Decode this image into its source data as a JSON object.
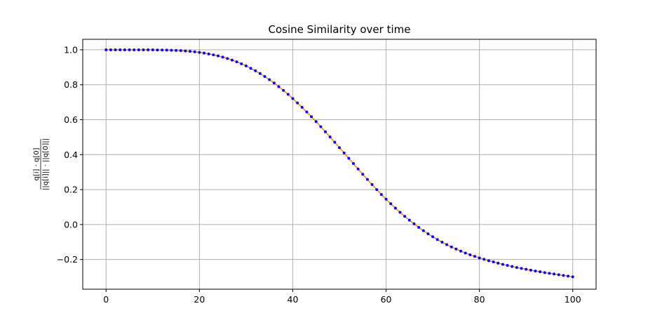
{
  "chart_data": {
    "type": "line",
    "title": "Cosine Similarity over time",
    "xlabel": "",
    "ylabel_numerator": "q[i] · q[0]",
    "ylabel_denominator": "||q[i]|| · ||q[0]||",
    "xlim": [
      -5,
      105
    ],
    "ylim": [
      -0.37,
      1.06
    ],
    "x_ticks": [
      0,
      20,
      40,
      60,
      80,
      100
    ],
    "y_ticks": [
      1.0,
      0.8,
      0.6,
      0.4,
      0.2,
      0.0,
      -0.2
    ],
    "x_tick_labels": [
      "0",
      "20",
      "40",
      "60",
      "80",
      "100"
    ],
    "y_tick_labels": [
      "1.0",
      "0.8",
      "0.6",
      "0.4",
      "0.2",
      "0.0",
      "−0.2"
    ],
    "grid": true,
    "colors": {
      "line": "#ff7f0e",
      "markers": "#0000ff"
    },
    "series": [
      {
        "x": [
          0,
          1,
          2,
          3,
          4,
          5,
          6,
          7,
          8,
          9,
          10,
          11,
          12,
          13,
          14,
          15,
          16,
          17,
          18,
          19,
          20,
          21,
          22,
          23,
          24,
          25,
          26,
          27,
          28,
          29,
          30,
          31,
          32,
          33,
          34,
          35,
          36,
          37,
          38,
          39,
          40,
          41,
          42,
          43,
          44,
          45,
          46,
          47,
          48,
          49,
          50,
          51,
          52,
          53,
          54,
          55,
          56,
          57,
          58,
          59,
          60,
          61,
          62,
          63,
          64,
          65,
          66,
          67,
          68,
          69,
          70,
          71,
          72,
          73,
          74,
          75,
          76,
          77,
          78,
          79,
          80,
          81,
          82,
          83,
          84,
          85,
          86,
          87,
          88,
          89,
          90,
          91,
          92,
          93,
          94,
          95,
          96,
          97,
          98,
          99,
          100
        ],
        "y": [
          1.0,
          1.0,
          1.0,
          1.0,
          1.0,
          1.0,
          1.0,
          1.0,
          1.0,
          1.0,
          1.0,
          0.999,
          0.999,
          0.998,
          0.997,
          0.996,
          0.995,
          0.993,
          0.991,
          0.988,
          0.985,
          0.981,
          0.976,
          0.971,
          0.965,
          0.958,
          0.95,
          0.941,
          0.931,
          0.92,
          0.908,
          0.894,
          0.88,
          0.864,
          0.847,
          0.829,
          0.81,
          0.789,
          0.768,
          0.745,
          0.721,
          0.696,
          0.671,
          0.644,
          0.617,
          0.589,
          0.56,
          0.531,
          0.501,
          0.471,
          0.44,
          0.41,
          0.379,
          0.349,
          0.318,
          0.288,
          0.258,
          0.229,
          0.2,
          0.172,
          0.145,
          0.119,
          0.094,
          0.07,
          0.047,
          0.025,
          0.004,
          -0.016,
          -0.035,
          -0.053,
          -0.07,
          -0.086,
          -0.101,
          -0.115,
          -0.128,
          -0.14,
          -0.152,
          -0.163,
          -0.173,
          -0.182,
          -0.191,
          -0.199,
          -0.207,
          -0.214,
          -0.221,
          -0.228,
          -0.234,
          -0.24,
          -0.246,
          -0.251,
          -0.256,
          -0.261,
          -0.266,
          -0.27,
          -0.275,
          -0.279,
          -0.283,
          -0.287,
          -0.291,
          -0.295,
          -0.299
        ]
      }
    ]
  }
}
